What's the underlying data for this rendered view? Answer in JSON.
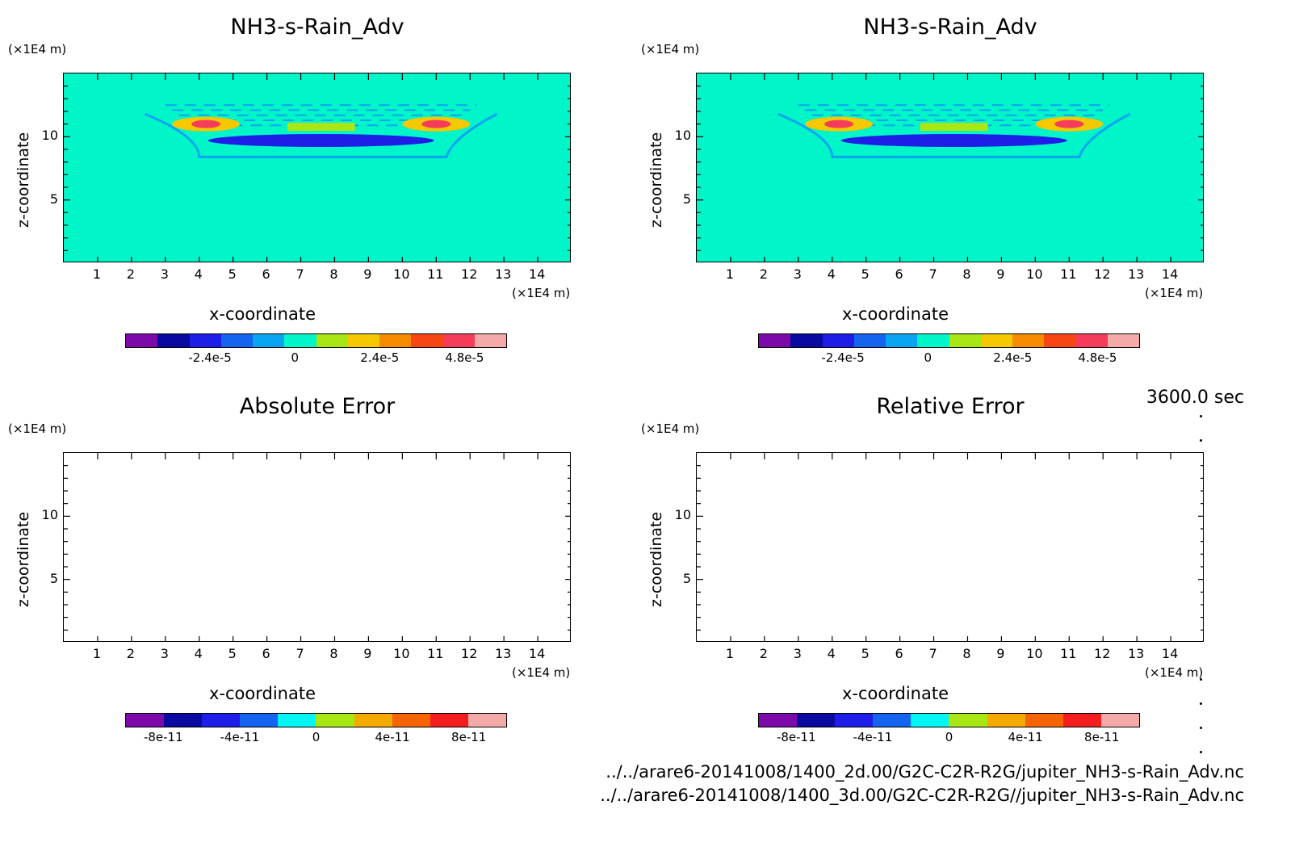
{
  "chart_data": [
    {
      "type": "heatmap",
      "title": "NH3-s-Rain_Adv",
      "xlabel": "x-coordinate",
      "ylabel": "z-coordinate",
      "x_unit": "(×1E4 m)",
      "y_unit": "(×1E4 m)",
      "xlim": [
        0,
        15
      ],
      "ylim": [
        0,
        15
      ],
      "x_ticks": [
        "1",
        "2",
        "3",
        "4",
        "5",
        "6",
        "7",
        "8",
        "9",
        "10",
        "11",
        "12",
        "13",
        "14"
      ],
      "y_ticks": [
        "5",
        "10"
      ],
      "colorbar": {
        "colors": [
          "#7c0aa8",
          "#0a0aa0",
          "#1e1ee8",
          "#1464f0",
          "#0aa5f0",
          "#00f5c8",
          "#a8e614",
          "#f5c800",
          "#f58c00",
          "#f54614",
          "#f53c5a",
          "#f5aaaa"
        ],
        "tick_labels": [
          "-2.4e-5",
          "0",
          "2.4e-5",
          "4.8e-5"
        ],
        "tick_values": [
          -2.4e-05,
          0,
          2.4e-05,
          4.8e-05
        ],
        "range": [
          -4.8e-05,
          6e-05
        ]
      },
      "features": [
        {
          "x": 7.6,
          "z": 9.7,
          "value": -3e-05
        },
        {
          "x": 4.2,
          "z": 11.0,
          "value": 5e-05
        },
        {
          "x": 11.0,
          "z": 11.0,
          "value": 5e-05
        },
        {
          "x": 7.6,
          "z": 10.5,
          "value": 1e-05
        }
      ]
    },
    {
      "type": "heatmap",
      "title": "NH3-s-Rain_Adv",
      "xlabel": "x-coordinate",
      "ylabel": "z-coordinate",
      "x_unit": "(×1E4 m)",
      "y_unit": "(×1E4 m)",
      "xlim": [
        0,
        15
      ],
      "ylim": [
        0,
        15
      ],
      "x_ticks": [
        "1",
        "2",
        "3",
        "4",
        "5",
        "6",
        "7",
        "8",
        "9",
        "10",
        "11",
        "12",
        "13",
        "14"
      ],
      "y_ticks": [
        "5",
        "10"
      ],
      "colorbar": {
        "colors": [
          "#7c0aa8",
          "#0a0aa0",
          "#1e1ee8",
          "#1464f0",
          "#0aa5f0",
          "#00f5c8",
          "#a8e614",
          "#f5c800",
          "#f58c00",
          "#f54614",
          "#f53c5a",
          "#f5aaaa"
        ],
        "tick_labels": [
          "-2.4e-5",
          "0",
          "2.4e-5",
          "4.8e-5"
        ],
        "tick_values": [
          -2.4e-05,
          0,
          2.4e-05,
          4.8e-05
        ],
        "range": [
          -4.8e-05,
          6e-05
        ]
      },
      "features": [
        {
          "x": 7.6,
          "z": 9.7,
          "value": -3e-05
        },
        {
          "x": 4.2,
          "z": 11.0,
          "value": 5e-05
        },
        {
          "x": 11.0,
          "z": 11.0,
          "value": 5e-05
        },
        {
          "x": 7.6,
          "z": 10.5,
          "value": 1e-05
        }
      ]
    },
    {
      "type": "heatmap",
      "title": "Absolute Error",
      "xlabel": "x-coordinate",
      "ylabel": "z-coordinate",
      "x_unit": "(×1E4 m)",
      "y_unit": "(×1E4 m)",
      "xlim": [
        0,
        15
      ],
      "ylim": [
        0,
        15
      ],
      "x_ticks": [
        "1",
        "2",
        "3",
        "4",
        "5",
        "6",
        "7",
        "8",
        "9",
        "10",
        "11",
        "12",
        "13",
        "14"
      ],
      "y_ticks": [
        "5",
        "10"
      ],
      "colorbar": {
        "colors": [
          "#7c0aa8",
          "#0a0aa0",
          "#1e1ee8",
          "#1464f0",
          "#00f5f5",
          "#a8e614",
          "#f5aa00",
          "#f56400",
          "#f51e1e",
          "#f5aaaa"
        ],
        "tick_labels": [
          "-8e-11",
          "-4e-11",
          "0",
          "4e-11",
          "8e-11"
        ],
        "tick_values": [
          -8e-11,
          -4e-11,
          0,
          4e-11,
          8e-11
        ],
        "range": [
          -1e-10,
          1e-10
        ]
      },
      "features": []
    },
    {
      "type": "heatmap",
      "title": "Relative Error",
      "xlabel": "x-coordinate",
      "ylabel": "z-coordinate",
      "x_unit": "(×1E4 m)",
      "y_unit": "(×1E4 m)",
      "xlim": [
        0,
        15
      ],
      "ylim": [
        0,
        15
      ],
      "x_ticks": [
        "1",
        "2",
        "3",
        "4",
        "5",
        "6",
        "7",
        "8",
        "9",
        "10",
        "11",
        "12",
        "13",
        "14"
      ],
      "y_ticks": [
        "5",
        "10"
      ],
      "colorbar": {
        "colors": [
          "#7c0aa8",
          "#0a0aa0",
          "#1e1ee8",
          "#1464f0",
          "#00f5f5",
          "#a8e614",
          "#f5aa00",
          "#f56400",
          "#f51e1e",
          "#f5aaaa"
        ],
        "tick_labels": [
          "-8e-11",
          "-4e-11",
          "0",
          "4e-11",
          "8e-11"
        ],
        "tick_values": [
          -8e-11,
          -4e-11,
          0,
          4e-11,
          8e-11
        ],
        "range": [
          -1e-10,
          1e-10
        ]
      },
      "features": []
    }
  ],
  "timestamp": "3600.0 sec",
  "footer": {
    "file1": "../../arare6-20141008/1400_2d.00/G2C-C2R-R2G/jupiter_NH3-s-Rain_Adv.nc",
    "file2": "../../arare6-20141008/1400_3d.00/G2C-C2R-R2G//jupiter_NH3-s-Rain_Adv.nc"
  }
}
